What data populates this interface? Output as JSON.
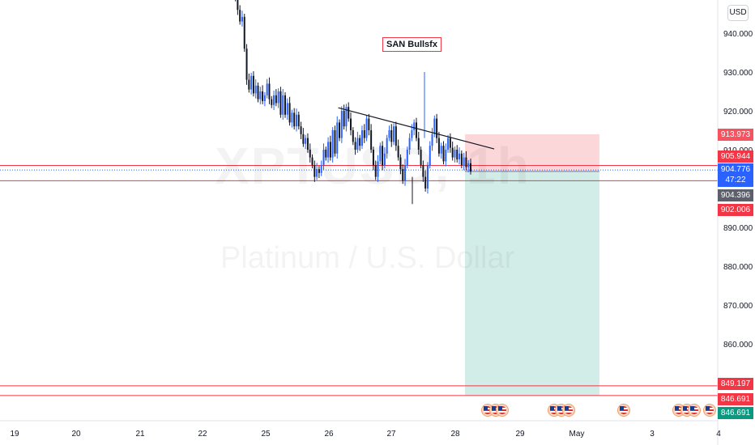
{
  "chart_data": {
    "type": "candlestick",
    "symbol_watermark": "XPTUSD, 1h",
    "description_watermark": "Platinum / U.S. Dollar",
    "currency": "USD",
    "annotation": "SAN Bullsfx",
    "x_ticks": [
      "19",
      "20",
      "21",
      "22",
      "25",
      "26",
      "27",
      "28",
      "29",
      "May",
      "3",
      "4"
    ],
    "y_ticks": [
      "940.000",
      "930.000",
      "920.000",
      "910.000",
      "890.000",
      "880.000",
      "870.000",
      "860.000"
    ],
    "ylim": [
      843.5,
      945.5
    ],
    "price_tags": {
      "take_profit": "913.973",
      "entry_top": "905.944",
      "current": "904.776",
      "countdown": "47:22",
      "bid": "904.396",
      "entry": "902.006",
      "stop_1": "849.197",
      "stop_2": "846.691",
      "stop_3": "846.691"
    },
    "levels": [
      905.944,
      902.006,
      849.197,
      846.691
    ],
    "trendline": {
      "from_day": 26.15,
      "from_price": 920.8,
      "to_day": 28.6,
      "to_price": 910.2
    },
    "position": {
      "start_day": 28.15,
      "end_day": 30.3,
      "entry": 904.4,
      "stop": 913.973,
      "target": 846.691
    },
    "candles_close": [
      951.2,
      950.0,
      949.0,
      946.0,
      943.0,
      944.2,
      936.0,
      928.0,
      925.5,
      929.0,
      924.5,
      926.5,
      923.0,
      925.0,
      922.5,
      924.0,
      927.0,
      923.0,
      921.5,
      924.0,
      922.0,
      925.0,
      919.0,
      924.0,
      919.0,
      922.0,
      917.0,
      919.5,
      916.0,
      919.0,
      916.0,
      914.0,
      911.5,
      913.0,
      910.0,
      908.0,
      906.0,
      903.0,
      905.0,
      904.0,
      906.0,
      910.0,
      908.0,
      912.0,
      908.0,
      915.0,
      909.0,
      917.0,
      913.0,
      920.0,
      916.0,
      921.0,
      918.0,
      915.0,
      912.0,
      910.0,
      913.0,
      911.0,
      915.0,
      913.0,
      918.0,
      915.0,
      910.0,
      906.0,
      903.0,
      907.0,
      911.0,
      906.0,
      909.0,
      913.0,
      915.0,
      912.0,
      916.0,
      911.0,
      908.0,
      905.0,
      902.0,
      906.0,
      910.0,
      913.0,
      915.0,
      917.0,
      913.0,
      910.0,
      906.0,
      903.0,
      900.0,
      906.0,
      911.0,
      914.0,
      918.0,
      913.0,
      909.0,
      911.0,
      907.0,
      910.0,
      913.0,
      910.5,
      908.0,
      910.0,
      907.5,
      909.0,
      906.0,
      908.0,
      905.5,
      906.5,
      904.4
    ]
  },
  "ui": {
    "usd_label": "USD"
  }
}
